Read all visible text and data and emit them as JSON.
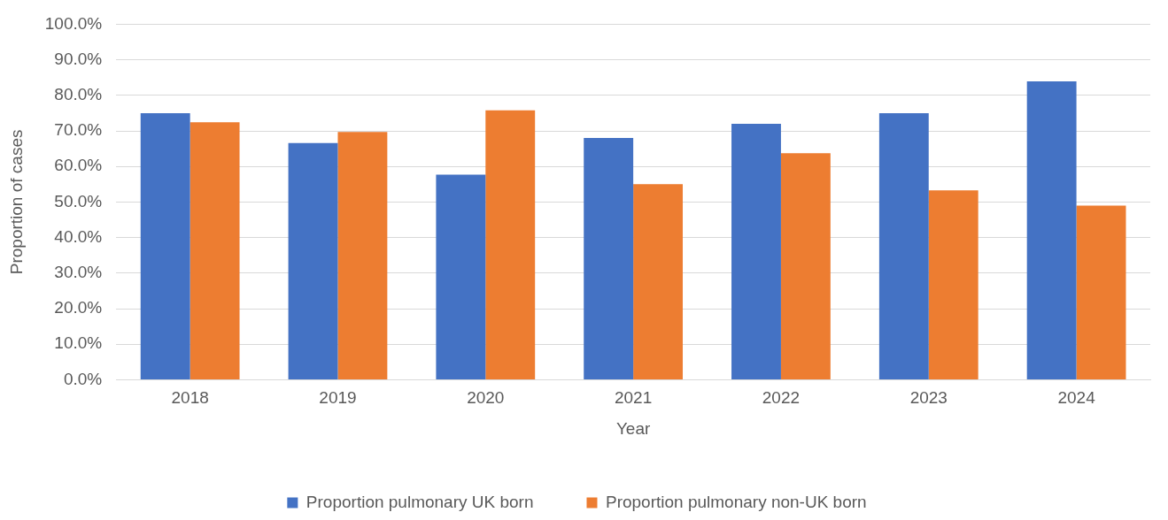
{
  "chart_data": {
    "type": "bar",
    "xlabel": "Year",
    "ylabel": "Proportion of cases",
    "categories": [
      "2018",
      "2019",
      "2020",
      "2021",
      "2022",
      "2023",
      "2024"
    ],
    "series": [
      {
        "name": "Proportion pulmonary UK born",
        "color": "#4472c4",
        "values": [
          75.0,
          66.6,
          57.7,
          68.0,
          72.0,
          75.0,
          83.9
        ]
      },
      {
        "name": "Proportion pulmonary non-UK born",
        "color": "#ed7d31",
        "values": [
          72.4,
          69.7,
          75.8,
          55.0,
          63.7,
          53.3,
          49.0
        ]
      }
    ],
    "ylim": [
      0,
      100
    ],
    "yticks": [
      {
        "value": 0,
        "label": "0.0%"
      },
      {
        "value": 10,
        "label": "10.0%"
      },
      {
        "value": 20,
        "label": "20.0%"
      },
      {
        "value": 30,
        "label": "30.0%"
      },
      {
        "value": 40,
        "label": "40.0%"
      },
      {
        "value": 50,
        "label": "50.0%"
      },
      {
        "value": 60,
        "label": "60.0%"
      },
      {
        "value": 70,
        "label": "70.0%"
      },
      {
        "value": 80,
        "label": "80.0%"
      },
      {
        "value": 90,
        "label": "90.0%"
      },
      {
        "value": 100,
        "label": "100.0%"
      }
    ],
    "grid": "y",
    "legend": "bottom"
  }
}
